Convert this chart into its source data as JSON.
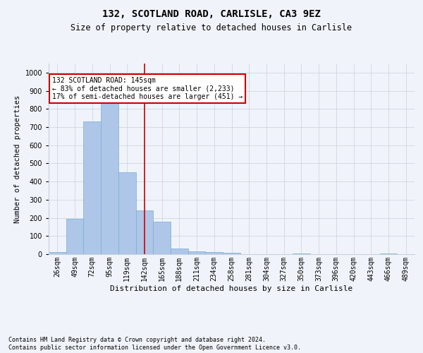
{
  "title1": "132, SCOTLAND ROAD, CARLISLE, CA3 9EZ",
  "title2": "Size of property relative to detached houses in Carlisle",
  "xlabel": "Distribution of detached houses by size in Carlisle",
  "ylabel": "Number of detached properties",
  "footnote": "Contains HM Land Registry data © Crown copyright and database right 2024.\nContains public sector information licensed under the Open Government Licence v3.0.",
  "bar_labels": [
    "26sqm",
    "49sqm",
    "72sqm",
    "95sqm",
    "119sqm",
    "142sqm",
    "165sqm",
    "188sqm",
    "211sqm",
    "234sqm",
    "258sqm",
    "281sqm",
    "304sqm",
    "327sqm",
    "350sqm",
    "373sqm",
    "396sqm",
    "420sqm",
    "443sqm",
    "466sqm",
    "489sqm"
  ],
  "bar_values": [
    12,
    195,
    730,
    835,
    450,
    240,
    178,
    30,
    17,
    13,
    6,
    0,
    0,
    0,
    5,
    0,
    0,
    0,
    0,
    4,
    0
  ],
  "bar_color": "#aec6e8",
  "bar_edge_color": "#7aaed4",
  "vline_x": 5,
  "vline_color": "#cc0000",
  "annotation_text": "132 SCOTLAND ROAD: 145sqm\n← 83% of detached houses are smaller (2,233)\n17% of semi-detached houses are larger (451) →",
  "annotation_box_color": "#ffffff",
  "annotation_box_edge": "#cc0000",
  "ylim": [
    0,
    1050
  ],
  "yticks": [
    0,
    100,
    200,
    300,
    400,
    500,
    600,
    700,
    800,
    900,
    1000
  ],
  "bg_color": "#f0f4fa",
  "grid_color": "#c8d0dc",
  "title1_fontsize": 10,
  "title2_fontsize": 8.5,
  "xlabel_fontsize": 8,
  "ylabel_fontsize": 7.5,
  "tick_fontsize": 7,
  "footnote_fontsize": 6
}
